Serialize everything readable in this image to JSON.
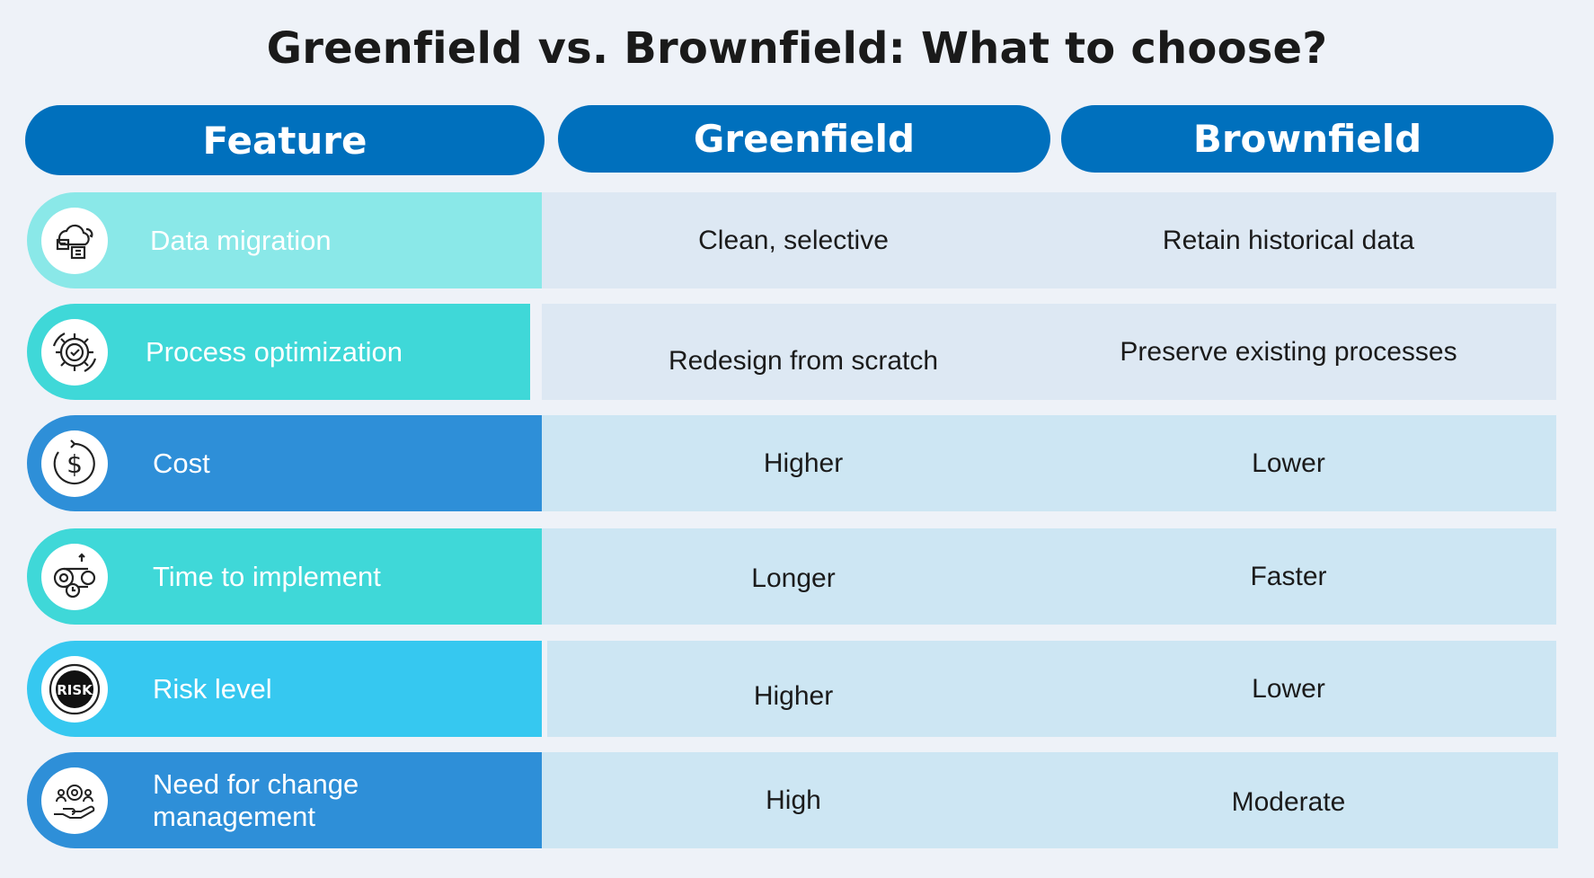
{
  "title": "Greenfield vs. Brownfield: What to choose?",
  "headers": {
    "feature": "Feature",
    "greenfield": "Greenfield",
    "brownfield": "Brownfield"
  },
  "colors": {
    "header_bg": "#0070bd",
    "teal_light": "#8ae8e8",
    "teal": "#3fd8d8",
    "blue": "#2e8fd8",
    "sky": "#36c8f0",
    "cell_gray_blue": "#dde8f3",
    "cell_light_blue": "#cde6f3"
  },
  "rows": [
    {
      "feature": "Data migration",
      "icon": "cloud-data-icon",
      "greenfield": "Clean, selective",
      "brownfield": "Retain historical data"
    },
    {
      "feature": "Process optimization",
      "icon": "gear-check-icon",
      "greenfield": "Redesign from scratch",
      "brownfield": "Preserve existing processes"
    },
    {
      "feature": "Cost",
      "icon": "dollar-cycle-icon",
      "greenfield": "Higher",
      "brownfield": "Lower"
    },
    {
      "feature": "Time to implement",
      "icon": "gear-clock-icon",
      "greenfield": "Longer",
      "brownfield": "Faster"
    },
    {
      "feature": "Risk level",
      "icon": "risk-badge-icon",
      "greenfield": "Higher",
      "brownfield": "Lower"
    },
    {
      "feature": "Need for change management",
      "icon": "hand-gear-people-icon",
      "greenfield": "High",
      "brownfield": "Moderate"
    }
  ]
}
